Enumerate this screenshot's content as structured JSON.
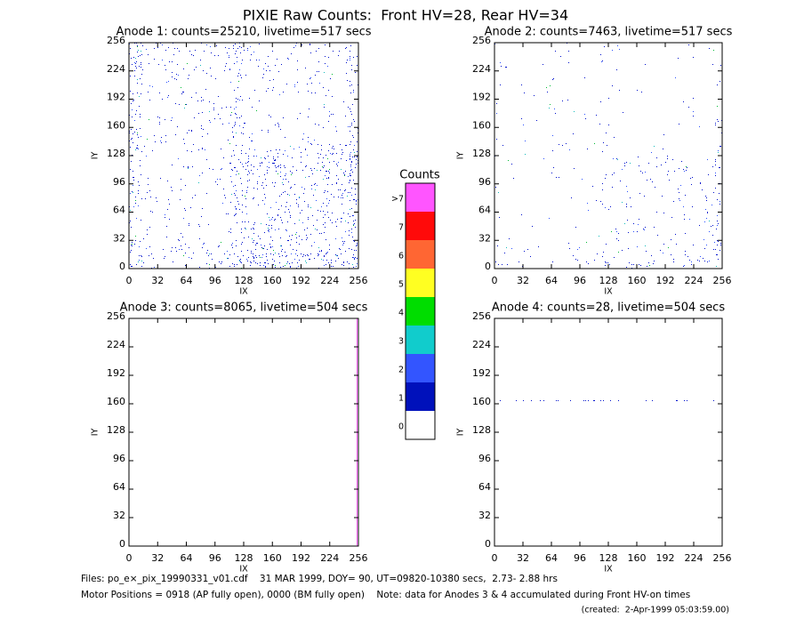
{
  "title": "PIXIE Raw Counts:  Front HV=28, Rear HV=34",
  "chart_data": [
    {
      "type": "heatmap",
      "title": "Anode 1: counts=25210, livetime=517 secs",
      "x_label": "IX",
      "y_label": "IY",
      "xlim": [
        0,
        256
      ],
      "ylim": [
        0,
        256
      ],
      "xticks": [
        0,
        32,
        64,
        96,
        128,
        160,
        192,
        224,
        256
      ],
      "yticks": [
        0,
        32,
        64,
        96,
        128,
        160,
        192,
        224,
        256
      ]
    },
    {
      "type": "heatmap",
      "title": "Anode 2: counts=7463, livetime=517 secs",
      "x_label": "IX",
      "y_label": "IY",
      "xlim": [
        0,
        256
      ],
      "ylim": [
        0,
        256
      ],
      "xticks": [
        0,
        32,
        64,
        96,
        128,
        160,
        192,
        224,
        256
      ],
      "yticks": [
        0,
        32,
        64,
        96,
        128,
        160,
        192,
        224,
        256
      ]
    },
    {
      "type": "heatmap",
      "title": "Anode 3: counts=8065, livetime=504 secs",
      "x_label": "IX",
      "y_label": "IY",
      "xlim": [
        0,
        256
      ],
      "ylim": [
        0,
        256
      ],
      "xticks": [
        0,
        32,
        64,
        96,
        128,
        160,
        192,
        224,
        256
      ],
      "yticks": [
        0,
        32,
        64,
        96,
        128,
        160,
        192,
        224,
        256
      ]
    },
    {
      "type": "heatmap",
      "title": "Anode 4: counts=28, livetime=504 secs",
      "x_label": "IX",
      "y_label": "IY",
      "xlim": [
        0,
        256
      ],
      "ylim": [
        0,
        256
      ],
      "xticks": [
        0,
        32,
        64,
        96,
        128,
        160,
        192,
        224,
        256
      ],
      "yticks": [
        0,
        32,
        64,
        96,
        128,
        160,
        192,
        224,
        256
      ]
    }
  ],
  "colorbar": {
    "title": "Counts",
    "labels": [
      ">7",
      "7",
      "6",
      "5",
      "4",
      "3",
      "2",
      "1",
      "0"
    ],
    "colors": [
      "#ff55ff",
      "#ff0a0a",
      "#ff6633",
      "#ffff22",
      "#00dd00",
      "#11cccc",
      "#3355ff",
      "#0011bb",
      "#ffffff"
    ]
  },
  "footer": {
    "files": "Files: po_e×_pix_19990331_v01.cdf    31 MAR 1999, DOY= 90, UT=09820-10380 secs,  2.73- 2.88 hrs",
    "motor": "Motor Positions = 0918 (AP fully open), 0000 (BM fully open)    Note: data for Anodes 3 & 4 accumulated during Front HV-on times",
    "created": "(created:  2-Apr-1999 05:03:59.00)"
  }
}
